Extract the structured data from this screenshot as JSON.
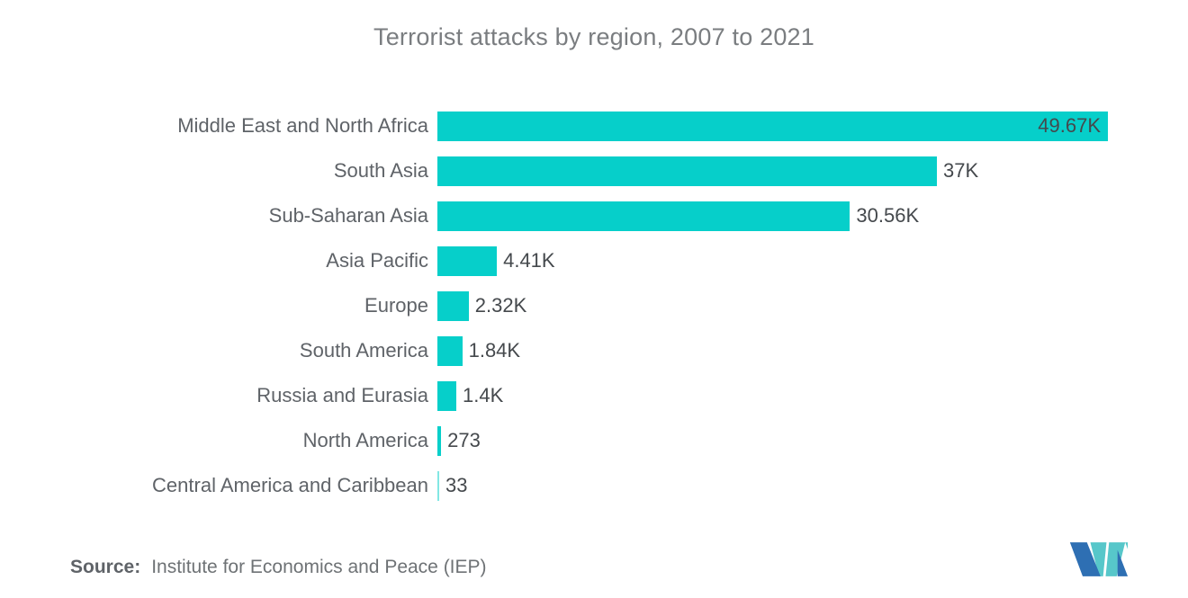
{
  "chart_data": {
    "type": "bar",
    "orientation": "horizontal",
    "title": "Terrorist attacks by region, 2007 to 2021",
    "categories": [
      "Middle East and North Africa",
      "South Asia",
      "Sub-Saharan Asia",
      "Asia Pacific",
      "Europe",
      "South America",
      "Russia and Eurasia",
      "North America",
      "Central America and Caribbean"
    ],
    "values": [
      49670,
      37000,
      30560,
      4410,
      2320,
      1840,
      1400,
      273,
      33
    ],
    "value_labels": [
      "49.67K",
      "37K",
      "30.56K",
      "4.41K",
      "2.32K",
      "1.84K",
      "1.4K",
      "273",
      "33"
    ],
    "xlim": [
      0,
      49670
    ],
    "grid": false,
    "legend": "none",
    "bar_color": "#06cfca",
    "value_label_position": "outside bar end; largest bar label inside"
  },
  "footer": {
    "source_label": "Source:",
    "source_text": "Institute for Economics and Peace (IEP)"
  },
  "logo": {
    "name": "Mordor Intelligence M mark",
    "blue": "#2e6fb3",
    "teal": "#57c7ca"
  },
  "colors": {
    "title_text": "#7a7d80",
    "category_text": "#5f6368",
    "value_text": "#45494d",
    "background": "#ffffff"
  }
}
